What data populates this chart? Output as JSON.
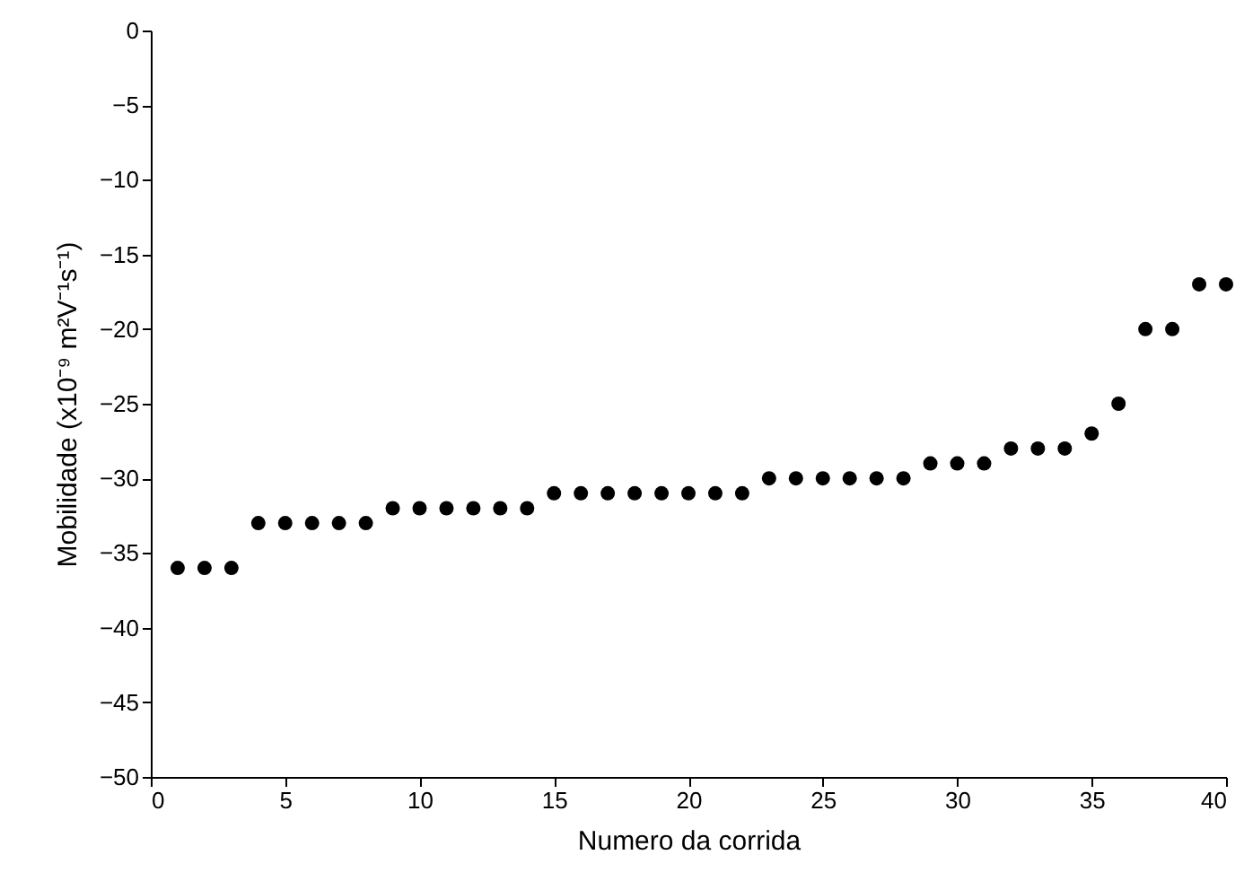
{
  "chart_data": {
    "type": "scatter",
    "xlabel": "Numero da corrida",
    "ylabel": "Mobilidade (x10⁻⁹ m²V⁻¹s⁻¹)",
    "x": [
      1,
      2,
      3,
      4,
      5,
      6,
      7,
      8,
      9,
      10,
      11,
      12,
      13,
      14,
      15,
      16,
      17,
      18,
      19,
      20,
      21,
      22,
      23,
      24,
      25,
      26,
      27,
      28,
      29,
      30,
      31,
      32,
      33,
      34,
      35,
      36,
      37,
      38,
      39,
      40
    ],
    "values": [
      -36,
      -36,
      -36,
      -33,
      -33,
      -33,
      -33,
      -33,
      -32,
      -32,
      -32,
      -32,
      -32,
      -32,
      -31,
      -31,
      -31,
      -31,
      -31,
      -31,
      -31,
      -31,
      -30,
      -30,
      -30,
      -30,
      -30,
      -30,
      -29,
      -29,
      -29,
      -28,
      -28,
      -28,
      -27,
      -25,
      -20,
      -20,
      -17,
      -17
    ],
    "color": "#000000",
    "marker": "circle",
    "xlim": [
      0,
      40
    ],
    "xticks": [
      0,
      5,
      10,
      15,
      20,
      25,
      30,
      35,
      40
    ],
    "ylim": [
      -50,
      0
    ],
    "yticks": [
      -50,
      -45,
      -40,
      -35,
      -30,
      -25,
      -20,
      -15,
      -10,
      -5,
      0
    ]
  }
}
